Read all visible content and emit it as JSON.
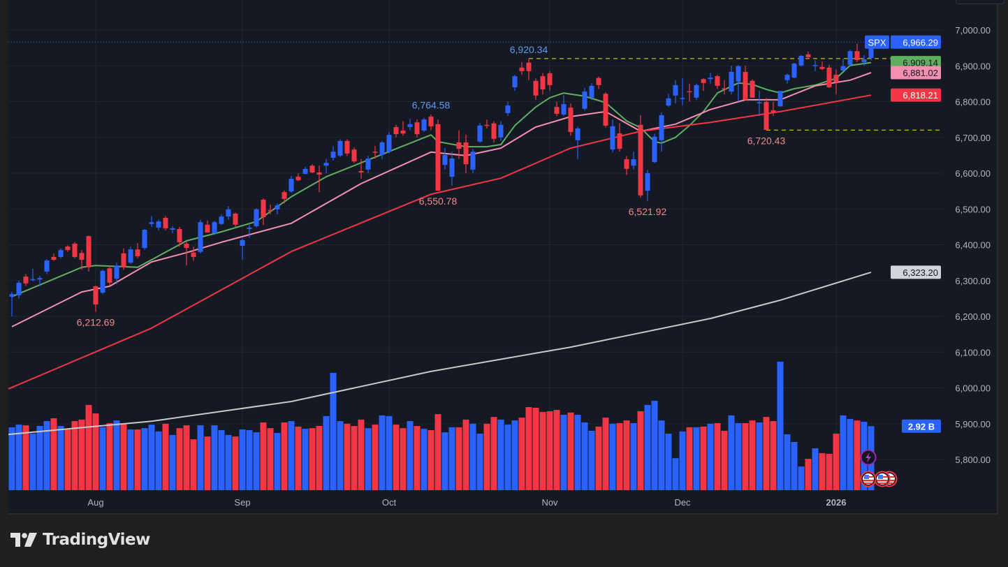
{
  "brand": {
    "name": "TradingView"
  },
  "symbol": "SPX",
  "colors": {
    "up": "#2962ff",
    "down": "#f23645",
    "ma_fast": "#5fae5f",
    "ma_mid": "#f48fb1",
    "ma_slow": "#f23645",
    "ma_long": "#c9c9c9",
    "high_label": "#5b9cf6",
    "low_label": "#f08a8a",
    "level_line": "#f5e10c"
  },
  "chart_data": {
    "type": "candlestick",
    "ylim": [
      5750,
      7050
    ],
    "y_ticks": [
      "7,000.00",
      "6,900.00",
      "6,800.00",
      "6,700.00",
      "6,600.00",
      "6,500.00",
      "6,400.00",
      "6,300.00",
      "6,200.00",
      "6,100.00",
      "6,000.00",
      "5,900.00",
      "5,800.00"
    ],
    "y_tick_values": [
      7000,
      6900,
      6800,
      6700,
      6600,
      6500,
      6400,
      6300,
      6200,
      6100,
      6000,
      5900,
      5800
    ],
    "x_ticks": [
      {
        "label": "Aug",
        "index": 12
      },
      {
        "label": "Sep",
        "index": 33
      },
      {
        "label": "Oct",
        "index": 54
      },
      {
        "label": "Nov",
        "index": 77
      },
      {
        "label": "Dec",
        "index": 96
      },
      {
        "label": "2026",
        "index": 118,
        "bold": true
      }
    ],
    "grid": true,
    "ohlc": [
      [
        6255,
        6268,
        6200,
        6262
      ],
      [
        6259,
        6300,
        6250,
        6294
      ],
      [
        6311,
        6318,
        6285,
        6292
      ],
      [
        6302,
        6333,
        6298,
        6304
      ],
      [
        6303,
        6313,
        6285,
        6307
      ],
      [
        6325,
        6360,
        6318,
        6356
      ],
      [
        6366,
        6376,
        6355,
        6358
      ],
      [
        6366,
        6390,
        6362,
        6385
      ],
      [
        6395,
        6398,
        6380,
        6385
      ],
      [
        6403,
        6408,
        6362,
        6366
      ],
      [
        6377,
        6385,
        6330,
        6358
      ],
      [
        6424,
        6426,
        6325,
        6337
      ],
      [
        6284,
        6286,
        6212.69,
        6233
      ],
      [
        6266,
        6330,
        6262,
        6327
      ],
      [
        6334,
        6342,
        6285,
        6294
      ],
      [
        6305,
        6350,
        6290,
        6342
      ],
      [
        6376,
        6390,
        6330,
        6337
      ],
      [
        6350,
        6395,
        6346,
        6387
      ],
      [
        6387,
        6405,
        6362,
        6368
      ],
      [
        6391,
        6444,
        6386,
        6442
      ],
      [
        6458,
        6480,
        6450,
        6463
      ],
      [
        6448,
        6470,
        6440,
        6465
      ],
      [
        6475,
        6480,
        6440,
        6446
      ],
      [
        6442,
        6452,
        6432,
        6446
      ],
      [
        6444,
        6450,
        6395,
        6407
      ],
      [
        6403,
        6410,
        6342,
        6391
      ],
      [
        6378,
        6395,
        6355,
        6366
      ],
      [
        6380,
        6470,
        6376,
        6463
      ],
      [
        6456,
        6468,
        6434,
        6434
      ],
      [
        6432,
        6467,
        6428,
        6463
      ],
      [
        6458,
        6485,
        6455,
        6479
      ],
      [
        6479,
        6508,
        6470,
        6499
      ],
      [
        6487,
        6490,
        6450,
        6456
      ],
      [
        6397,
        6418,
        6358,
        6413
      ],
      [
        6444,
        6455,
        6420,
        6448
      ],
      [
        6452,
        6502,
        6448,
        6499
      ],
      [
        6526,
        6530,
        6455,
        6477
      ],
      [
        6497,
        6512,
        6485,
        6495
      ],
      [
        6499,
        6515,
        6485,
        6510
      ],
      [
        6547,
        6552,
        6515,
        6528
      ],
      [
        6549,
        6592,
        6545,
        6584
      ],
      [
        6590,
        6600,
        6578,
        6580
      ],
      [
        6598,
        6618,
        6596,
        6612
      ],
      [
        6621,
        6625,
        6600,
        6602
      ],
      [
        6602,
        6621,
        6547,
        6596
      ],
      [
        6621,
        6640,
        6600,
        6629
      ],
      [
        6643,
        6675,
        6635,
        6660
      ],
      [
        6649,
        6695,
        6645,
        6690
      ],
      [
        6690,
        6695,
        6648,
        6655
      ],
      [
        6666,
        6672,
        6628,
        6633
      ],
      [
        6606,
        6640,
        6585,
        6602
      ],
      [
        6610,
        6648,
        6600,
        6641
      ],
      [
        6660,
        6676,
        6640,
        6658
      ],
      [
        6651,
        6690,
        6640,
        6686
      ],
      [
        6660,
        6715,
        6655,
        6707
      ],
      [
        6729,
        6735,
        6700,
        6709
      ],
      [
        6719,
        6745,
        6705,
        6711
      ],
      [
        6729,
        6752,
        6720,
        6737
      ],
      [
        6742,
        6750,
        6700,
        6709
      ],
      [
        6719,
        6755,
        6715,
        6750
      ],
      [
        6758,
        6764.58,
        6720,
        6731
      ],
      [
        6737,
        6750,
        6550.78,
        6551
      ],
      [
        6623,
        6670,
        6610,
        6651
      ],
      [
        6590,
        6660,
        6565,
        6641
      ],
      [
        6686,
        6720,
        6640,
        6668
      ],
      [
        6686,
        6708,
        6600,
        6625
      ],
      [
        6610,
        6668,
        6600,
        6660
      ],
      [
        6688,
        6740,
        6685,
        6733
      ],
      [
        6735,
        6750,
        6725,
        6733
      ],
      [
        6739,
        6745,
        6685,
        6696
      ],
      [
        6700,
        6745,
        6690,
        6735
      ],
      [
        6768,
        6800,
        6760,
        6789
      ],
      [
        6840,
        6875,
        6830,
        6871
      ],
      [
        6895,
        6910,
        6875,
        6885
      ],
      [
        6909,
        6920.34,
        6860,
        6885
      ],
      [
        6858,
        6865,
        6805,
        6817
      ],
      [
        6871,
        6880,
        6820,
        6834
      ],
      [
        6879,
        6885,
        6830,
        6846
      ],
      [
        6785,
        6800,
        6760,
        6766
      ],
      [
        6764,
        6818,
        6760,
        6793
      ],
      [
        6783,
        6795,
        6705,
        6715
      ],
      [
        6692,
        6730,
        6640,
        6725
      ],
      [
        6780,
        6838,
        6775,
        6828
      ],
      [
        6811,
        6852,
        6805,
        6844
      ],
      [
        6866,
        6870,
        6835,
        6846
      ],
      [
        6822,
        6826,
        6728,
        6733
      ],
      [
        6666,
        6750,
        6658,
        6731
      ],
      [
        6711,
        6740,
        6660,
        6668
      ],
      [
        6639,
        6648,
        6595,
        6612
      ],
      [
        6621,
        6660,
        6610,
        6639
      ],
      [
        6735,
        6762,
        6532,
        6538
      ],
      [
        6551,
        6609,
        6521.92,
        6600
      ],
      [
        6631,
        6710,
        6628,
        6702
      ],
      [
        6692,
        6770,
        6660,
        6762
      ],
      [
        6789,
        6822,
        6785,
        6809
      ],
      [
        6817,
        6860,
        6795,
        6846
      ],
      [
        6809,
        6865,
        6790,
        6810
      ],
      [
        6829,
        6850,
        6800,
        6827
      ],
      [
        6811,
        6850,
        6805,
        6846
      ],
      [
        6863,
        6865,
        6830,
        6852
      ],
      [
        6863,
        6880,
        6850,
        6867
      ],
      [
        6871,
        6875,
        6835,
        6844
      ],
      [
        6837,
        6860,
        6820,
        6836
      ],
      [
        6828,
        6900,
        6820,
        6883
      ],
      [
        6856,
        6902,
        6800,
        6899
      ],
      [
        6883,
        6900,
        6810,
        6805
      ],
      [
        6858,
        6862,
        6811,
        6811
      ],
      [
        6797,
        6830,
        6760,
        6798
      ],
      [
        6799,
        6810,
        6720.43,
        6721
      ],
      [
        6776,
        6800,
        6760,
        6770
      ],
      [
        6787,
        6830,
        6785,
        6830
      ],
      [
        6860,
        6878,
        6850,
        6875
      ],
      [
        6867,
        6908,
        6865,
        6906
      ],
      [
        6901,
        6930,
        6898,
        6928
      ],
      [
        6932,
        6940,
        6918,
        6924
      ],
      [
        6900,
        6915,
        6885,
        6902
      ],
      [
        6897,
        6912,
        6888,
        6891
      ],
      [
        6895,
        6903,
        6838,
        6840
      ],
      [
        6875,
        6890,
        6820,
        6854
      ],
      [
        6887,
        6920,
        6885,
        6899
      ],
      [
        6903,
        6945,
        6900,
        6941
      ],
      [
        6941,
        6962,
        6910,
        6916
      ],
      [
        6910,
        6930,
        6900,
        6918
      ],
      [
        6922,
        6975,
        6915,
        6966.29
      ]
    ],
    "volume_billions": [
      2.87,
      2.99,
      2.96,
      2.58,
      2.93,
      3.15,
      3.28,
      2.93,
      2.8,
      3.15,
      3.22,
      3.89,
      3.5,
      2.87,
      3.06,
      3.18,
      3.03,
      2.77,
      2.77,
      2.83,
      2.99,
      2.68,
      3.03,
      2.52,
      2.83,
      2.96,
      2.32,
      2.96,
      2.45,
      2.96,
      2.74,
      2.52,
      2.45,
      2.77,
      2.74,
      2.64,
      3.09,
      2.83,
      2.61,
      3.09,
      3.15,
      2.9,
      2.8,
      2.83,
      2.93,
      3.38,
      5.35,
      3.15,
      3.03,
      2.93,
      3.22,
      2.83,
      2.99,
      3.41,
      3.38,
      2.99,
      2.83,
      3.15,
      2.93,
      2.8,
      2.74,
      3.47,
      2.64,
      2.87,
      2.87,
      3.22,
      3.03,
      2.58,
      3.03,
      3.34,
      3.22,
      2.99,
      3.18,
      3.31,
      3.79,
      3.76,
      3.57,
      3.6,
      3.66,
      3.44,
      3.54,
      3.44,
      3.09,
      2.71,
      2.9,
      3.31,
      3.03,
      3.06,
      3.18,
      3.06,
      3.6,
      3.89,
      4.08,
      3.18,
      2.58,
      1.46,
      2.68,
      2.87,
      2.87,
      2.9,
      3.03,
      3.06,
      2.71,
      3.41,
      3.06,
      3.06,
      3.18,
      3.09,
      3.34,
      3.15,
      5.86,
      2.55,
      2.2,
      1.08,
      1.43,
      1.91,
      1.69,
      1.66,
      2.58,
      3.41,
      3.25,
      3.18,
      3.12,
      2.92
    ],
    "moving_averages": [
      {
        "key": "ma_fast",
        "last": 6909.14,
        "points": [
          [
            0,
            6255
          ],
          [
            10,
            6337
          ],
          [
            12,
            6342
          ],
          [
            18,
            6337
          ],
          [
            20,
            6358
          ],
          [
            25,
            6411
          ],
          [
            30,
            6436
          ],
          [
            35,
            6465
          ],
          [
            40,
            6534
          ],
          [
            45,
            6590
          ],
          [
            50,
            6629
          ],
          [
            55,
            6668
          ],
          [
            60,
            6707
          ],
          [
            61,
            6688
          ],
          [
            65,
            6674
          ],
          [
            68,
            6674
          ],
          [
            70,
            6680
          ],
          [
            72,
            6733
          ],
          [
            75,
            6785
          ],
          [
            77,
            6811
          ],
          [
            79,
            6824
          ],
          [
            82,
            6815
          ],
          [
            85,
            6797
          ],
          [
            88,
            6746
          ],
          [
            90,
            6727
          ],
          [
            92,
            6688
          ],
          [
            93,
            6684
          ],
          [
            95,
            6700
          ],
          [
            97,
            6733
          ],
          [
            99,
            6772
          ],
          [
            101,
            6824
          ],
          [
            104,
            6852
          ],
          [
            106,
            6848
          ],
          [
            108,
            6834
          ],
          [
            110,
            6824
          ],
          [
            112,
            6836
          ],
          [
            115,
            6846
          ],
          [
            118,
            6865
          ],
          [
            120,
            6901
          ],
          [
            123,
            6909.14
          ]
        ]
      },
      {
        "key": "ma_mid",
        "last": 6881.02,
        "points": [
          [
            0,
            6171
          ],
          [
            10,
            6268
          ],
          [
            14,
            6284
          ],
          [
            20,
            6352
          ],
          [
            25,
            6378
          ],
          [
            30,
            6407
          ],
          [
            40,
            6460
          ],
          [
            50,
            6571
          ],
          [
            60,
            6659
          ],
          [
            65,
            6649
          ],
          [
            70,
            6670
          ],
          [
            75,
            6729
          ],
          [
            80,
            6758
          ],
          [
            85,
            6772
          ],
          [
            90,
            6717
          ],
          [
            95,
            6737
          ],
          [
            100,
            6778
          ],
          [
            105,
            6805
          ],
          [
            110,
            6805
          ],
          [
            115,
            6844
          ],
          [
            120,
            6860
          ],
          [
            123,
            6881.02
          ]
        ]
      },
      {
        "key": "ma_slow",
        "last": 6818.21,
        "points": [
          [
            -0.5,
            5997
          ],
          [
            20,
            6167
          ],
          [
            40,
            6381
          ],
          [
            60,
            6541
          ],
          [
            70,
            6586
          ],
          [
            80,
            6670
          ],
          [
            90,
            6717
          ],
          [
            100,
            6742
          ],
          [
            110,
            6772
          ],
          [
            123,
            6818.21
          ]
        ]
      },
      {
        "key": "ma_long",
        "last": 6323.2,
        "points": [
          [
            -0.5,
            5870
          ],
          [
            20,
            5907
          ],
          [
            40,
            5962
          ],
          [
            60,
            6046
          ],
          [
            80,
            6114
          ],
          [
            100,
            6194
          ],
          [
            110,
            6245
          ],
          [
            123,
            6323.2
          ]
        ]
      }
    ],
    "annotations": [
      {
        "text": "6,212.69",
        "index": 12,
        "price": 6212.69,
        "kind": "low"
      },
      {
        "text": "6,764.58",
        "index": 60,
        "price": 6764.58,
        "kind": "high"
      },
      {
        "text": "6,550.78",
        "index": 61,
        "price": 6550.78,
        "kind": "low"
      },
      {
        "text": "6,920.34",
        "index": 74,
        "price": 6920.34,
        "kind": "high"
      },
      {
        "text": "6,521.92",
        "index": 91,
        "price": 6521.92,
        "kind": "low"
      },
      {
        "text": "6,720.43",
        "index": 108,
        "price": 6720.43,
        "kind": "low"
      }
    ],
    "level_lines": [
      {
        "price": 6920.34,
        "from_index": 74
      },
      {
        "price": 6720.43,
        "from_index": 108
      }
    ],
    "last_price": 6966.29
  },
  "price_tags": [
    {
      "text": "6,966.29",
      "price": 6966.29,
      "bg": "#2962ff",
      "fg": "#ffffff"
    },
    {
      "text": "6,909.14",
      "price": 6909.14,
      "bg": "#5fae5f",
      "fg": "#131722"
    },
    {
      "text": "6,881.02",
      "price": 6881.02,
      "bg": "#f48fb1",
      "fg": "#131722"
    },
    {
      "text": "6,818.21",
      "price": 6818.21,
      "bg": "#f23645",
      "fg": "#ffffff"
    },
    {
      "text": "6,323.20",
      "price": 6323.2,
      "bg": "#d1d4dc",
      "fg": "#131722"
    }
  ],
  "volume_tag": {
    "text": "2.92 B",
    "bg": "#2962ff",
    "fg": "#ffffff"
  },
  "events": [
    {
      "icon": "lightning-icon",
      "index": 123,
      "row": 0,
      "ring": "#9c27b0"
    },
    {
      "icon": "us-flag-icon",
      "index": 123,
      "row": 1,
      "ring": "#f23645"
    },
    {
      "icon": "us-flag-icon",
      "index": 125,
      "row": 1,
      "ring": "#f23645"
    },
    {
      "icon": "us-flag-icon",
      "index": 126,
      "row": 1,
      "ring": "#f23645"
    }
  ]
}
